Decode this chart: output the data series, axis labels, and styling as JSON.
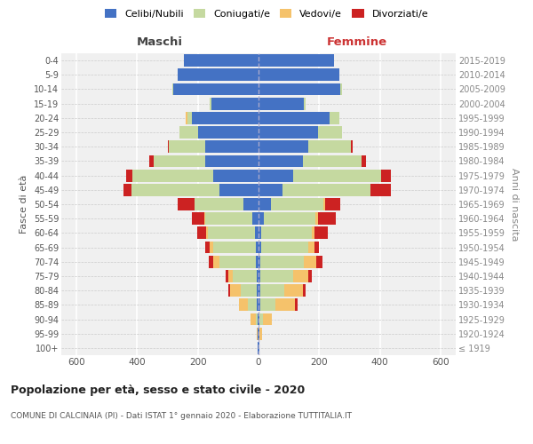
{
  "age_groups": [
    "100+",
    "95-99",
    "90-94",
    "85-89",
    "80-84",
    "75-79",
    "70-74",
    "65-69",
    "60-64",
    "55-59",
    "50-54",
    "45-49",
    "40-44",
    "35-39",
    "30-34",
    "25-29",
    "20-24",
    "15-19",
    "10-14",
    "5-9",
    "0-4"
  ],
  "birth_years": [
    "≤ 1919",
    "1920-1924",
    "1925-1929",
    "1930-1934",
    "1935-1939",
    "1940-1944",
    "1945-1949",
    "1950-1954",
    "1955-1959",
    "1960-1964",
    "1965-1969",
    "1970-1974",
    "1975-1979",
    "1980-1984",
    "1985-1989",
    "1990-1994",
    "1995-1999",
    "2000-2004",
    "2005-2009",
    "2010-2014",
    "2015-2019"
  ],
  "colors": {
    "celibi": "#4472c4",
    "coniugati": "#c5d9a0",
    "vedovi": "#f5c26b",
    "divorziati": "#cc2222"
  },
  "males": {
    "celibi": [
      2,
      2,
      3,
      5,
      5,
      5,
      8,
      10,
      12,
      20,
      50,
      130,
      150,
      175,
      175,
      200,
      220,
      155,
      280,
      265,
      245
    ],
    "coniugati": [
      0,
      0,
      5,
      30,
      55,
      80,
      120,
      140,
      155,
      155,
      160,
      290,
      265,
      170,
      120,
      60,
      15,
      5,
      5,
      0,
      0
    ],
    "vedovi": [
      0,
      3,
      18,
      30,
      35,
      15,
      20,
      10,
      5,
      5,
      0,
      0,
      0,
      0,
      0,
      0,
      5,
      0,
      0,
      0,
      0
    ],
    "divorziati": [
      0,
      0,
      0,
      0,
      5,
      8,
      15,
      15,
      30,
      40,
      55,
      25,
      20,
      15,
      5,
      0,
      0,
      0,
      0,
      0,
      0
    ]
  },
  "females": {
    "nubili": [
      2,
      2,
      4,
      5,
      5,
      5,
      5,
      8,
      10,
      18,
      40,
      80,
      115,
      145,
      165,
      195,
      235,
      150,
      270,
      265,
      250
    ],
    "coniugate": [
      0,
      2,
      10,
      50,
      80,
      110,
      145,
      155,
      165,
      170,
      175,
      290,
      290,
      195,
      140,
      80,
      30,
      5,
      5,
      0,
      0
    ],
    "vedove": [
      2,
      8,
      30,
      65,
      60,
      50,
      40,
      20,
      8,
      8,
      5,
      0,
      0,
      0,
      0,
      0,
      0,
      0,
      0,
      0,
      0
    ],
    "divorziate": [
      0,
      0,
      0,
      8,
      10,
      10,
      20,
      15,
      45,
      60,
      50,
      65,
      30,
      15,
      5,
      0,
      0,
      0,
      0,
      0,
      0
    ]
  },
  "xlim": 650,
  "title": "Popolazione per età, sesso e stato civile - 2020",
  "subtitle": "COMUNE DI CALCINAIA (PI) - Dati ISTAT 1° gennaio 2020 - Elaborazione TUTTITALIA.IT",
  "ylabel_left": "Fasce di età",
  "ylabel_right": "Anni di nascita",
  "legend_labels": [
    "Celibi/Nubili",
    "Coniugati/e",
    "Vedovi/e",
    "Divorziati/e"
  ],
  "bg_color": "#f0f0f0"
}
